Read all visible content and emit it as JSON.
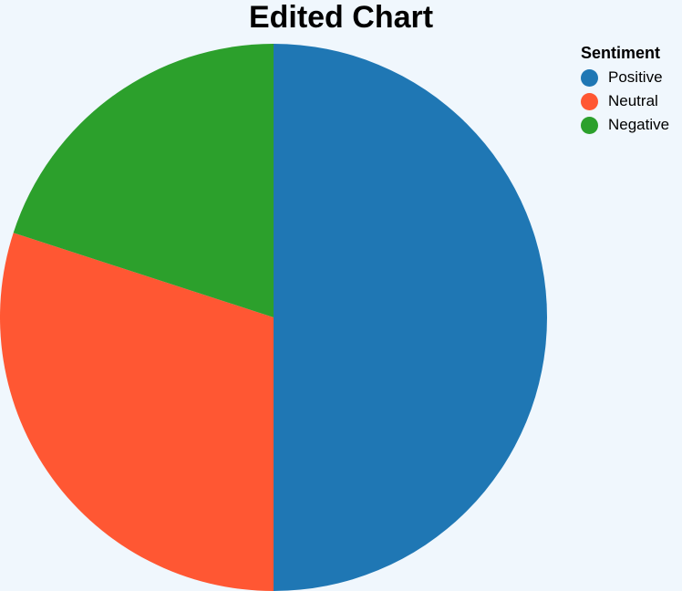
{
  "chart_data": {
    "type": "pie",
    "title": "Edited Chart",
    "legend_title": "Sentiment",
    "legend_position": "top-right",
    "categories": [
      "Positive",
      "Neutral",
      "Negative"
    ],
    "values": [
      50,
      30,
      20
    ],
    "colors": [
      "#1f77b4",
      "#ff5733",
      "#2ca02c"
    ]
  }
}
